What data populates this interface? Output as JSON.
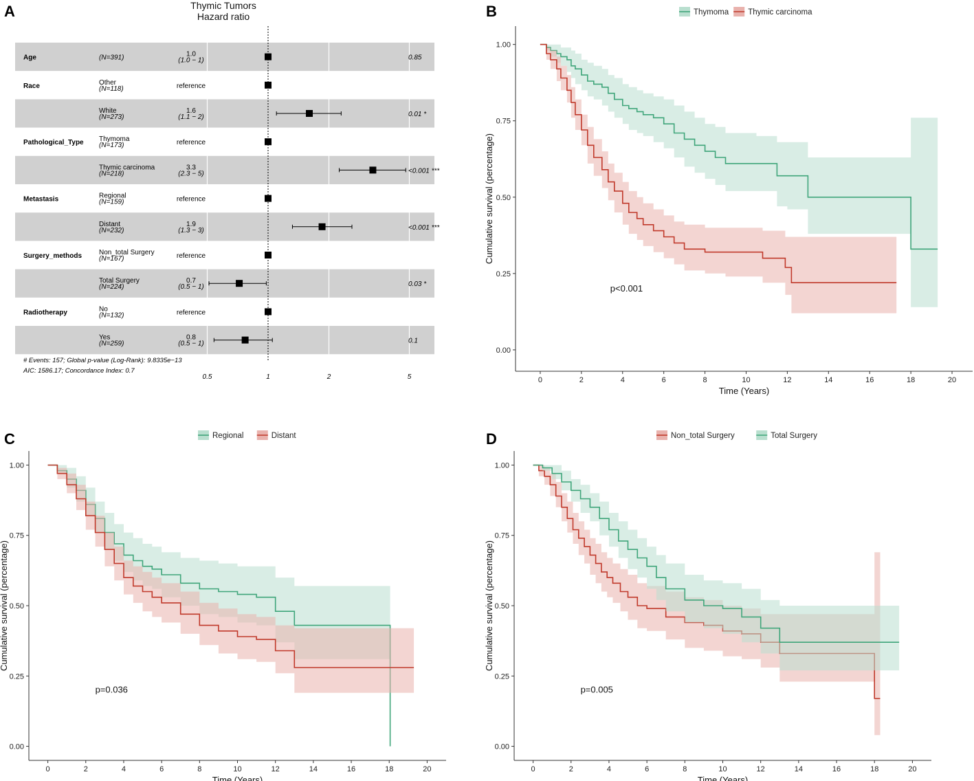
{
  "chart_data": [
    {
      "panel": "A",
      "type": "forest",
      "title": [
        "Thymic Tumors",
        "Hazard ratio"
      ],
      "xscale": "log",
      "xlim": [
        0.45,
        7
      ],
      "xticks": [
        "0.5",
        "1",
        "2",
        "5"
      ],
      "rows": [
        {
          "var": "Age",
          "level": "",
          "n": "(N=391)",
          "hr": "1.0",
          "ci": "(1.0 − 1)",
          "est": 1.0,
          "lo": 1.0,
          "hi": 1.0,
          "p": "0.85",
          "shade": true
        },
        {
          "var": "Race",
          "level": "Other",
          "n": "(N=118)",
          "hr": "reference",
          "ci": "",
          "est": 1.0,
          "lo": null,
          "hi": null,
          "p": "",
          "shade": false
        },
        {
          "var": "",
          "level": "White",
          "n": "(N=273)",
          "hr": "1.6",
          "ci": "(1.1 − 2)",
          "est": 1.6,
          "lo": 1.1,
          "hi": 2.3,
          "p": "0.01 *",
          "shade": true
        },
        {
          "var": "Pathological_Type",
          "level": "Thymoma",
          "n": "(N=173)",
          "hr": "reference",
          "ci": "",
          "est": 1.0,
          "lo": null,
          "hi": null,
          "p": "",
          "shade": false
        },
        {
          "var": "",
          "level": "Thymic carcinoma",
          "n": "(N=218)",
          "hr": "3.3",
          "ci": "(2.3 − 5)",
          "est": 3.3,
          "lo": 2.25,
          "hi": 4.8,
          "p": "<0.001 ***",
          "shade": true
        },
        {
          "var": "Metastasis",
          "level": "Regional",
          "n": "(N=159)",
          "hr": "reference",
          "ci": "",
          "est": 1.0,
          "lo": null,
          "hi": null,
          "p": "",
          "shade": false
        },
        {
          "var": "",
          "level": "Distant",
          "n": "(N=232)",
          "hr": "1.9",
          "ci": "(1.3 − 3)",
          "est": 1.85,
          "lo": 1.32,
          "hi": 2.6,
          "p": "<0.001 ***",
          "shade": true
        },
        {
          "var": "Surgery_methods",
          "level": "Non_total Surgery",
          "n": "(N=167)",
          "hr": "reference",
          "ci": "",
          "est": 1.0,
          "lo": null,
          "hi": null,
          "p": "",
          "shade": false
        },
        {
          "var": "",
          "level": "Total Surgery",
          "n": "(N=224)",
          "hr": "0.7",
          "ci": "(0.5 − 1)",
          "est": 0.72,
          "lo": 0.51,
          "hi": 0.98,
          "p": "0.03 *",
          "shade": true
        },
        {
          "var": "Radiotherapy",
          "level": "No",
          "n": "(N=132)",
          "hr": "reference",
          "ci": "",
          "est": 1.0,
          "lo": null,
          "hi": null,
          "p": "",
          "shade": false
        },
        {
          "var": "",
          "level": "Yes",
          "n": "(N=259)",
          "hr": "0.8",
          "ci": "(0.5 − 1)",
          "est": 0.77,
          "lo": 0.54,
          "hi": 1.05,
          "p": "0.1",
          "shade": true
        }
      ],
      "footnote": [
        "# Events: 157; Global p-value (Log-Rank): 9.8335e−13",
        "AIC: 1586.17; Concordance Index: 0.7"
      ]
    },
    {
      "panel": "B",
      "type": "km",
      "xlabel": "Time (Years)",
      "ylabel": "Cumulative survival (percentage)",
      "xlim": [
        -1.2,
        21
      ],
      "ylim": [
        -0.07,
        1.06
      ],
      "xticks": [
        0,
        2,
        4,
        6,
        8,
        10,
        12,
        14,
        16,
        18,
        20
      ],
      "yticks": [
        0.0,
        0.25,
        0.5,
        0.75,
        1.0
      ],
      "pvalue": "p<0.001",
      "pvalue_at": [
        3.4,
        0.2
      ],
      "legend": [
        "Thymoma",
        "Thymic carcinoma"
      ],
      "series": [
        {
          "name": "Thymoma",
          "color": "#3fa57a",
          "fill": "#b9dfcf",
          "times": [
            0,
            0.3,
            0.5,
            0.8,
            1.0,
            1.3,
            1.5,
            1.7,
            2.0,
            2.3,
            2.6,
            3.0,
            3.3,
            3.6,
            4.0,
            4.3,
            4.7,
            5.0,
            5.5,
            6.0,
            6.5,
            7.0,
            7.5,
            8.0,
            8.5,
            9.0,
            10.5,
            11.5,
            12.0,
            13.0,
            18.0,
            19.3
          ],
          "surv": [
            1.0,
            0.99,
            0.98,
            0.97,
            0.96,
            0.95,
            0.93,
            0.92,
            0.9,
            0.88,
            0.87,
            0.86,
            0.84,
            0.82,
            0.8,
            0.79,
            0.78,
            0.77,
            0.76,
            0.74,
            0.71,
            0.69,
            0.67,
            0.65,
            0.63,
            0.61,
            0.61,
            0.57,
            0.57,
            0.5,
            0.33,
            0.33
          ],
          "lower": [
            1.0,
            0.98,
            0.96,
            0.94,
            0.93,
            0.91,
            0.89,
            0.87,
            0.85,
            0.83,
            0.82,
            0.8,
            0.78,
            0.76,
            0.74,
            0.72,
            0.71,
            0.7,
            0.68,
            0.66,
            0.63,
            0.6,
            0.58,
            0.56,
            0.54,
            0.52,
            0.52,
            0.47,
            0.46,
            0.38,
            0.14,
            0.14
          ],
          "upper": [
            1.0,
            1.0,
            1.0,
            1.0,
            0.99,
            0.99,
            0.98,
            0.97,
            0.95,
            0.94,
            0.93,
            0.92,
            0.9,
            0.89,
            0.87,
            0.86,
            0.85,
            0.84,
            0.83,
            0.82,
            0.8,
            0.78,
            0.76,
            0.74,
            0.73,
            0.71,
            0.7,
            0.68,
            0.68,
            0.63,
            0.76,
            0.76
          ]
        },
        {
          "name": "Thymic carcinoma",
          "color": "#c0392b",
          "fill": "#e9b2ad",
          "times": [
            0,
            0.3,
            0.5,
            0.8,
            1.0,
            1.3,
            1.5,
            1.7,
            2.0,
            2.3,
            2.6,
            3.0,
            3.3,
            3.6,
            4.0,
            4.3,
            4.7,
            5.0,
            5.5,
            6.0,
            6.5,
            7.0,
            8.0,
            9.0,
            10.8,
            11.9,
            12.2,
            17.3
          ],
          "surv": [
            1.0,
            0.97,
            0.95,
            0.92,
            0.89,
            0.85,
            0.81,
            0.77,
            0.72,
            0.67,
            0.63,
            0.59,
            0.55,
            0.52,
            0.48,
            0.45,
            0.43,
            0.41,
            0.39,
            0.37,
            0.35,
            0.33,
            0.32,
            0.32,
            0.3,
            0.27,
            0.22,
            0.22
          ],
          "lower": [
            1.0,
            0.95,
            0.92,
            0.88,
            0.85,
            0.81,
            0.76,
            0.72,
            0.67,
            0.61,
            0.57,
            0.53,
            0.49,
            0.45,
            0.41,
            0.38,
            0.36,
            0.34,
            0.32,
            0.3,
            0.28,
            0.26,
            0.25,
            0.24,
            0.22,
            0.18,
            0.12,
            0.12
          ],
          "upper": [
            1.0,
            0.99,
            0.98,
            0.96,
            0.93,
            0.9,
            0.86,
            0.82,
            0.77,
            0.73,
            0.69,
            0.65,
            0.61,
            0.58,
            0.55,
            0.52,
            0.5,
            0.48,
            0.46,
            0.44,
            0.42,
            0.41,
            0.4,
            0.4,
            0.39,
            0.37,
            0.37,
            0.37
          ]
        }
      ]
    },
    {
      "panel": "C",
      "type": "km",
      "xlabel": "Time (Years)",
      "ylabel": "Cumulative survival (percentage)",
      "xlim": [
        -1,
        21
      ],
      "ylim": [
        -0.05,
        1.05
      ],
      "xticks": [
        0,
        2,
        4,
        6,
        8,
        10,
        12,
        14,
        16,
        18,
        20
      ],
      "yticks": [
        0.0,
        0.25,
        0.5,
        0.75,
        1.0
      ],
      "pvalue": "p=0.036",
      "pvalue_at": [
        2.5,
        0.2
      ],
      "legend": [
        "Regional",
        "Distant"
      ],
      "series": [
        {
          "name": "Regional",
          "color": "#3fa57a",
          "fill": "#b9dfcf",
          "times": [
            0,
            0.5,
            1.0,
            1.5,
            2.0,
            2.5,
            3.0,
            3.5,
            4.0,
            4.5,
            5.0,
            5.5,
            6.0,
            7.0,
            8.0,
            9.0,
            10.0,
            11.0,
            12.0,
            13.0,
            18.0,
            18.05
          ],
          "surv": [
            1.0,
            0.98,
            0.95,
            0.91,
            0.86,
            0.81,
            0.76,
            0.72,
            0.68,
            0.66,
            0.64,
            0.63,
            0.61,
            0.58,
            0.56,
            0.55,
            0.54,
            0.53,
            0.48,
            0.43,
            0.43,
            0.0
          ],
          "lower": [
            1.0,
            0.97,
            0.92,
            0.87,
            0.82,
            0.76,
            0.7,
            0.66,
            0.62,
            0.59,
            0.57,
            0.56,
            0.53,
            0.5,
            0.47,
            0.46,
            0.44,
            0.43,
            0.37,
            0.31,
            0.31,
            0.31
          ],
          "upper": [
            1.0,
            1.0,
            0.99,
            0.96,
            0.92,
            0.87,
            0.83,
            0.79,
            0.76,
            0.74,
            0.72,
            0.71,
            0.69,
            0.67,
            0.66,
            0.65,
            0.64,
            0.64,
            0.6,
            0.57,
            0.57,
            0.57
          ]
        },
        {
          "name": "Distant",
          "color": "#c0392b",
          "fill": "#e9b2ad",
          "times": [
            0,
            0.5,
            1.0,
            1.5,
            2.0,
            2.5,
            3.0,
            3.5,
            4.0,
            4.5,
            5.0,
            5.5,
            6.0,
            7.0,
            8.0,
            9.0,
            10.0,
            11.0,
            12.0,
            13.0,
            18.0,
            19.3
          ],
          "surv": [
            1.0,
            0.97,
            0.93,
            0.88,
            0.82,
            0.76,
            0.7,
            0.65,
            0.6,
            0.57,
            0.55,
            0.53,
            0.51,
            0.47,
            0.43,
            0.41,
            0.39,
            0.38,
            0.34,
            0.28,
            0.28,
            0.28
          ],
          "lower": [
            1.0,
            0.95,
            0.9,
            0.84,
            0.77,
            0.71,
            0.64,
            0.59,
            0.54,
            0.51,
            0.48,
            0.46,
            0.44,
            0.4,
            0.36,
            0.33,
            0.31,
            0.3,
            0.26,
            0.19,
            0.19,
            0.19
          ],
          "upper": [
            1.0,
            0.99,
            0.97,
            0.93,
            0.87,
            0.82,
            0.76,
            0.71,
            0.66,
            0.64,
            0.62,
            0.6,
            0.58,
            0.55,
            0.51,
            0.49,
            0.47,
            0.46,
            0.43,
            0.42,
            0.42,
            0.42
          ]
        }
      ]
    },
    {
      "panel": "D",
      "type": "km",
      "xlabel": "Time (Years)",
      "ylabel": "Cumulative survival (percentage)",
      "xlim": [
        -1,
        21
      ],
      "ylim": [
        -0.05,
        1.05
      ],
      "xticks": [
        0,
        2,
        4,
        6,
        8,
        10,
        12,
        14,
        16,
        18,
        20
      ],
      "yticks": [
        0.0,
        0.25,
        0.5,
        0.75,
        1.0
      ],
      "pvalue": "p=0.005",
      "pvalue_at": [
        2.5,
        0.2
      ],
      "legend": [
        "Non_total Surgery",
        "Total Surgery"
      ],
      "series": [
        {
          "name": "Non_total Surgery",
          "color": "#c0392b",
          "fill": "#e9b2ad",
          "times": [
            0,
            0.3,
            0.6,
            0.9,
            1.2,
            1.5,
            1.8,
            2.1,
            2.4,
            2.7,
            3.0,
            3.3,
            3.6,
            3.9,
            4.2,
            4.6,
            5.0,
            5.5,
            6.0,
            7.0,
            8.0,
            9.0,
            10.0,
            11.0,
            12.0,
            13.0,
            18.0,
            18.3
          ],
          "surv": [
            1.0,
            0.98,
            0.96,
            0.93,
            0.89,
            0.85,
            0.81,
            0.77,
            0.74,
            0.71,
            0.68,
            0.65,
            0.62,
            0.6,
            0.58,
            0.55,
            0.53,
            0.5,
            0.49,
            0.46,
            0.44,
            0.43,
            0.41,
            0.4,
            0.37,
            0.33,
            0.17,
            0.17
          ],
          "lower": [
            1.0,
            0.96,
            0.93,
            0.89,
            0.85,
            0.8,
            0.76,
            0.72,
            0.68,
            0.65,
            0.61,
            0.58,
            0.55,
            0.53,
            0.51,
            0.48,
            0.45,
            0.42,
            0.41,
            0.38,
            0.35,
            0.34,
            0.32,
            0.31,
            0.28,
            0.23,
            0.04,
            0.04
          ],
          "upper": [
            1.0,
            1.0,
            0.99,
            0.97,
            0.94,
            0.9,
            0.87,
            0.83,
            0.8,
            0.77,
            0.74,
            0.72,
            0.69,
            0.67,
            0.65,
            0.63,
            0.61,
            0.58,
            0.57,
            0.55,
            0.53,
            0.52,
            0.5,
            0.49,
            0.47,
            0.47,
            0.69,
            0.69
          ]
        },
        {
          "name": "Total Surgery",
          "color": "#3fa57a",
          "fill": "#b9dfcf",
          "times": [
            0,
            0.5,
            1.0,
            1.5,
            2.0,
            2.5,
            3.0,
            3.5,
            4.0,
            4.5,
            5.0,
            5.5,
            6.0,
            6.5,
            7.0,
            8.0,
            9.0,
            10.0,
            11.0,
            12.0,
            13.0,
            19.3
          ],
          "surv": [
            1.0,
            0.99,
            0.97,
            0.94,
            0.91,
            0.88,
            0.85,
            0.81,
            0.77,
            0.73,
            0.7,
            0.67,
            0.64,
            0.6,
            0.56,
            0.52,
            0.5,
            0.49,
            0.46,
            0.42,
            0.37,
            0.37
          ],
          "lower": [
            1.0,
            0.98,
            0.95,
            0.91,
            0.87,
            0.83,
            0.8,
            0.75,
            0.71,
            0.67,
            0.63,
            0.6,
            0.56,
            0.52,
            0.48,
            0.44,
            0.42,
            0.4,
            0.37,
            0.33,
            0.27,
            0.27
          ],
          "upper": [
            1.0,
            1.0,
            1.0,
            0.98,
            0.95,
            0.93,
            0.9,
            0.87,
            0.83,
            0.8,
            0.77,
            0.74,
            0.71,
            0.68,
            0.65,
            0.61,
            0.59,
            0.58,
            0.56,
            0.52,
            0.5,
            0.5
          ]
        }
      ]
    }
  ]
}
